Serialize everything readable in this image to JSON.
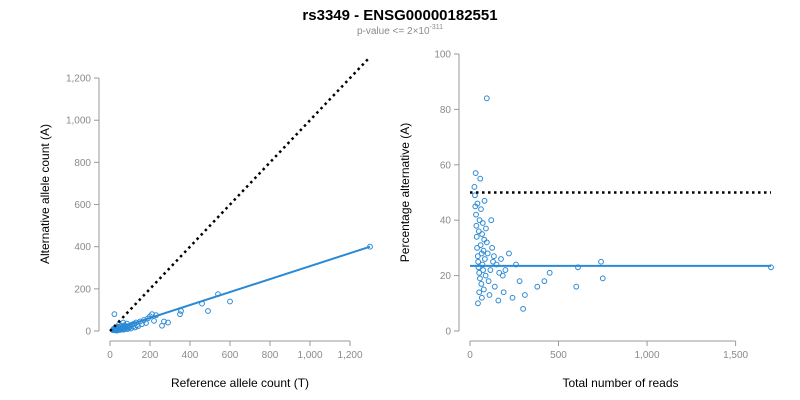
{
  "title": "rs3349 - ENSG00000182551",
  "subtitle": {
    "prefix": "p-value <= 2",
    "times": "×",
    "base": "10",
    "exponent": "-311"
  },
  "colors": {
    "point": "#2b8ad6",
    "fit_line": "#2b8ad6",
    "reference_line": "#000000",
    "axis": "#9a9a9a",
    "tick_label": "#8a8a8a"
  },
  "chart_data": [
    {
      "type": "scatter",
      "name": "allele-counts",
      "xlabel": "Reference allele count (T)",
      "ylabel": "Alternative allele count (A)",
      "xlim": [
        0,
        1300
      ],
      "ylim": [
        0,
        1300
      ],
      "x_ticks": [
        0,
        200,
        400,
        600,
        800,
        1000,
        1200
      ],
      "x_tick_labels": [
        "0",
        "200",
        "400",
        "600",
        "800",
        "1,000",
        "1,200"
      ],
      "y_ticks": [
        0,
        200,
        400,
        600,
        800,
        1000,
        1200
      ],
      "y_tick_labels": [
        "0",
        "200",
        "400",
        "600",
        "800",
        "1,000",
        "1,200"
      ],
      "points": [
        {
          "x": 20,
          "y": 5
        },
        {
          "x": 24,
          "y": 8
        },
        {
          "x": 26,
          "y": 3
        },
        {
          "x": 28,
          "y": 12
        },
        {
          "x": 30,
          "y": 6
        },
        {
          "x": 32,
          "y": 16
        },
        {
          "x": 34,
          "y": 9
        },
        {
          "x": 36,
          "y": 4
        },
        {
          "x": 38,
          "y": 14
        },
        {
          "x": 40,
          "y": 10
        },
        {
          "x": 42,
          "y": 20
        },
        {
          "x": 44,
          "y": 7
        },
        {
          "x": 46,
          "y": 13
        },
        {
          "x": 48,
          "y": 18
        },
        {
          "x": 50,
          "y": 5
        },
        {
          "x": 52,
          "y": 11
        },
        {
          "x": 54,
          "y": 24
        },
        {
          "x": 56,
          "y": 15
        },
        {
          "x": 58,
          "y": 8
        },
        {
          "x": 60,
          "y": 19
        },
        {
          "x": 62,
          "y": 12
        },
        {
          "x": 65,
          "y": 22
        },
        {
          "x": 68,
          "y": 6
        },
        {
          "x": 70,
          "y": 16
        },
        {
          "x": 72,
          "y": 27
        },
        {
          "x": 75,
          "y": 10
        },
        {
          "x": 78,
          "y": 18
        },
        {
          "x": 80,
          "y": 13
        },
        {
          "x": 84,
          "y": 23
        },
        {
          "x": 88,
          "y": 9
        },
        {
          "x": 90,
          "y": 20
        },
        {
          "x": 95,
          "y": 15
        },
        {
          "x": 100,
          "y": 26
        },
        {
          "x": 105,
          "y": 12
        },
        {
          "x": 110,
          "y": 30
        },
        {
          "x": 115,
          "y": 21
        },
        {
          "x": 120,
          "y": 35
        },
        {
          "x": 125,
          "y": 17
        },
        {
          "x": 130,
          "y": 40
        },
        {
          "x": 135,
          "y": 28
        },
        {
          "x": 140,
          "y": 22
        },
        {
          "x": 150,
          "y": 45
        },
        {
          "x": 160,
          "y": 33
        },
        {
          "x": 170,
          "y": 52
        },
        {
          "x": 180,
          "y": 38
        },
        {
          "x": 190,
          "y": 60
        },
        {
          "x": 200,
          "y": 70
        },
        {
          "x": 210,
          "y": 80
        },
        {
          "x": 220,
          "y": 48
        },
        {
          "x": 230,
          "y": 75
        },
        {
          "x": 260,
          "y": 25
        },
        {
          "x": 270,
          "y": 45
        },
        {
          "x": 290,
          "y": 40
        },
        {
          "x": 350,
          "y": 80
        },
        {
          "x": 355,
          "y": 95
        },
        {
          "x": 460,
          "y": 130
        },
        {
          "x": 490,
          "y": 95
        },
        {
          "x": 540,
          "y": 175
        },
        {
          "x": 600,
          "y": 140
        },
        {
          "x": 1300,
          "y": 400
        },
        {
          "x": 22,
          "y": 80
        },
        {
          "x": 35,
          "y": 2
        },
        {
          "x": 45,
          "y": 30
        },
        {
          "x": 66,
          "y": 40
        },
        {
          "x": 85,
          "y": 35
        },
        {
          "x": 18,
          "y": 10
        },
        {
          "x": 15,
          "y": 4
        }
      ],
      "reference_line": {
        "style": "dotted",
        "x": [
          0,
          1300
        ],
        "y": [
          0,
          1300
        ]
      },
      "fit_line": {
        "style": "solid",
        "x": [
          0,
          1300
        ],
        "y": [
          0,
          400
        ]
      }
    },
    {
      "type": "scatter",
      "name": "percentage-alternative",
      "xlabel": "Total number of reads",
      "ylabel": "Percentage alternative (A)",
      "xlim": [
        0,
        1700
      ],
      "ylim": [
        0,
        100
      ],
      "x_ticks": [
        0,
        500,
        1000,
        1500
      ],
      "x_tick_labels": [
        "0",
        "500",
        "1,000",
        "1,500"
      ],
      "y_ticks": [
        0,
        20,
        40,
        60,
        80,
        100
      ],
      "y_tick_labels": [
        "0",
        "20",
        "40",
        "60",
        "80",
        "100"
      ],
      "points": [
        {
          "x": 25,
          "y": 52
        },
        {
          "x": 28,
          "y": 49
        },
        {
          "x": 30,
          "y": 45
        },
        {
          "x": 32,
          "y": 57
        },
        {
          "x": 34,
          "y": 42
        },
        {
          "x": 36,
          "y": 38
        },
        {
          "x": 38,
          "y": 34
        },
        {
          "x": 40,
          "y": 30
        },
        {
          "x": 42,
          "y": 46
        },
        {
          "x": 44,
          "y": 27
        },
        {
          "x": 46,
          "y": 25
        },
        {
          "x": 48,
          "y": 23
        },
        {
          "x": 50,
          "y": 36
        },
        {
          "x": 52,
          "y": 21
        },
        {
          "x": 54,
          "y": 40
        },
        {
          "x": 56,
          "y": 19
        },
        {
          "x": 58,
          "y": 55
        },
        {
          "x": 60,
          "y": 31
        },
        {
          "x": 62,
          "y": 44
        },
        {
          "x": 64,
          "y": 17
        },
        {
          "x": 66,
          "y": 28
        },
        {
          "x": 68,
          "y": 35
        },
        {
          "x": 70,
          "y": 24
        },
        {
          "x": 72,
          "y": 39
        },
        {
          "x": 74,
          "y": 22
        },
        {
          "x": 76,
          "y": 29
        },
        {
          "x": 78,
          "y": 15
        },
        {
          "x": 80,
          "y": 33
        },
        {
          "x": 84,
          "y": 26
        },
        {
          "x": 88,
          "y": 20
        },
        {
          "x": 90,
          "y": 37
        },
        {
          "x": 95,
          "y": 84
        },
        {
          "x": 100,
          "y": 28
        },
        {
          "x": 105,
          "y": 18
        },
        {
          "x": 110,
          "y": 13
        },
        {
          "x": 115,
          "y": 22
        },
        {
          "x": 120,
          "y": 40
        },
        {
          "x": 125,
          "y": 30
        },
        {
          "x": 130,
          "y": 25
        },
        {
          "x": 140,
          "y": 16
        },
        {
          "x": 150,
          "y": 24
        },
        {
          "x": 160,
          "y": 11
        },
        {
          "x": 165,
          "y": 21
        },
        {
          "x": 175,
          "y": 26
        },
        {
          "x": 185,
          "y": 20
        },
        {
          "x": 200,
          "y": 22
        },
        {
          "x": 220,
          "y": 28
        },
        {
          "x": 240,
          "y": 12
        },
        {
          "x": 260,
          "y": 24
        },
        {
          "x": 280,
          "y": 18
        },
        {
          "x": 300,
          "y": 8
        },
        {
          "x": 310,
          "y": 13
        },
        {
          "x": 380,
          "y": 16
        },
        {
          "x": 420,
          "y": 18
        },
        {
          "x": 450,
          "y": 21
        },
        {
          "x": 600,
          "y": 16
        },
        {
          "x": 610,
          "y": 23
        },
        {
          "x": 740,
          "y": 25
        },
        {
          "x": 750,
          "y": 19
        },
        {
          "x": 1700,
          "y": 23
        },
        {
          "x": 45,
          "y": 10
        },
        {
          "x": 52,
          "y": 14
        },
        {
          "x": 67,
          "y": 12
        },
        {
          "x": 82,
          "y": 47
        },
        {
          "x": 95,
          "y": 32
        },
        {
          "x": 135,
          "y": 27
        },
        {
          "x": 190,
          "y": 14
        }
      ],
      "reference_line": {
        "style": "dotted",
        "x": [
          0,
          1700
        ],
        "y": [
          50,
          50
        ]
      },
      "fit_line": {
        "style": "solid",
        "x": [
          0,
          1700
        ],
        "y": [
          23.5,
          23.5
        ]
      }
    }
  ]
}
